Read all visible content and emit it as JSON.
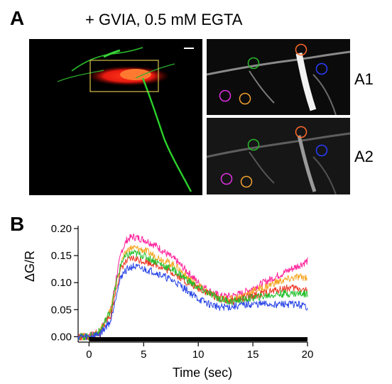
{
  "figure": {
    "panel_a_letter": "A",
    "panel_b_letter": "B",
    "condition_title": "+ GVIA, 0.5 mM EGTA",
    "subpanel_a1": "A1",
    "subpanel_a2": "A2"
  },
  "roi_colors": [
    "#ff6a2a",
    "#2ab82a",
    "#2a3cff",
    "#e030e0",
    "#f0a030"
  ],
  "chart_data": {
    "type": "line",
    "xlabel": "Time (sec)",
    "ylabel": "ΔG/R",
    "xlim": [
      -1,
      20
    ],
    "ylim": [
      -0.01,
      0.2
    ],
    "xticks": [
      0,
      5,
      10,
      15,
      20
    ],
    "yticks": [
      0.0,
      0.05,
      0.1,
      0.15,
      0.2
    ],
    "ytick_labels": [
      "0.00",
      "0.05",
      "0.10",
      "0.15",
      "0.20"
    ],
    "x": [
      -1,
      0,
      1,
      2,
      2.5,
      3,
      3.5,
      4,
      5,
      6,
      7,
      8,
      9,
      10,
      11,
      12,
      13,
      14,
      15,
      16,
      17,
      18,
      19,
      20
    ],
    "series": [
      {
        "color": "#ff1e9a",
        "values": [
          0.0,
          0.0,
          0.01,
          0.05,
          0.11,
          0.16,
          0.18,
          0.185,
          0.18,
          0.17,
          0.155,
          0.14,
          0.12,
          0.1,
          0.085,
          0.075,
          0.075,
          0.08,
          0.09,
          0.1,
          0.11,
          0.12,
          0.13,
          0.14
        ]
      },
      {
        "color": "#f5a623",
        "values": [
          0.0,
          0.0,
          0.01,
          0.05,
          0.1,
          0.14,
          0.16,
          0.165,
          0.16,
          0.15,
          0.14,
          0.13,
          0.11,
          0.095,
          0.08,
          0.07,
          0.07,
          0.075,
          0.085,
          0.09,
          0.1,
          0.105,
          0.11,
          0.11
        ]
      },
      {
        "color": "#ee3322",
        "values": [
          0.0,
          0.0,
          0.005,
          0.04,
          0.09,
          0.13,
          0.14,
          0.145,
          0.14,
          0.135,
          0.125,
          0.115,
          0.1,
          0.09,
          0.08,
          0.07,
          0.065,
          0.07,
          0.075,
          0.08,
          0.085,
          0.09,
          0.09,
          0.085
        ]
      },
      {
        "color": "#22c02a",
        "values": [
          0.0,
          0.0,
          0.01,
          0.05,
          0.1,
          0.14,
          0.15,
          0.155,
          0.15,
          0.14,
          0.13,
          0.12,
          0.105,
          0.09,
          0.08,
          0.07,
          0.065,
          0.068,
          0.072,
          0.075,
          0.078,
          0.08,
          0.08,
          0.08
        ]
      },
      {
        "color": "#2a46e6",
        "values": [
          0.0,
          0.0,
          0.005,
          0.03,
          0.08,
          0.115,
          0.125,
          0.13,
          0.125,
          0.12,
          0.11,
          0.1,
          0.085,
          0.07,
          0.06,
          0.055,
          0.055,
          0.058,
          0.06,
          0.06,
          0.06,
          0.06,
          0.06,
          0.055
        ]
      }
    ],
    "stimulus_bar": [
      0,
      20
    ]
  }
}
